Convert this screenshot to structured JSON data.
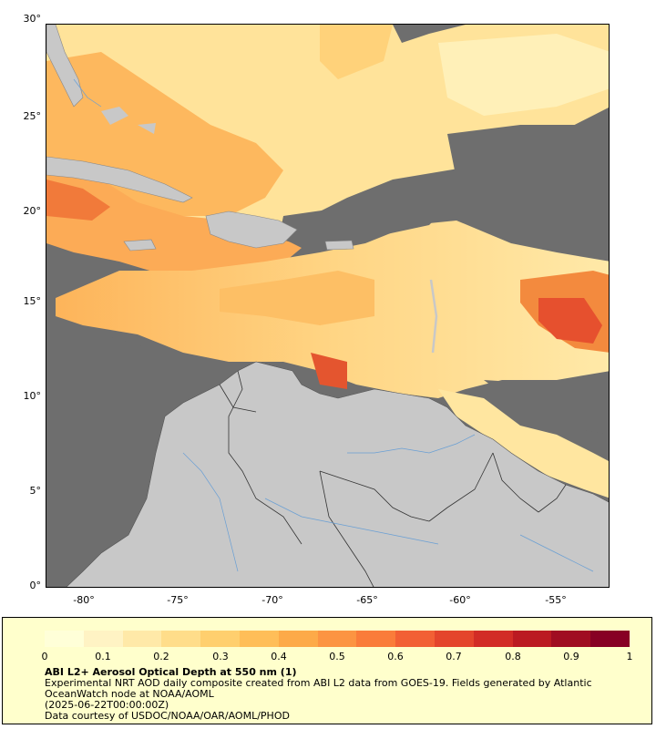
{
  "map": {
    "y_axis_labels": [
      "30°",
      "25°",
      "20°",
      "15°",
      "10°",
      "5°",
      "0°"
    ],
    "x_axis_labels": [
      "-80°",
      "-75°",
      "-70°",
      "-65°",
      "-60°",
      "-55°"
    ],
    "colors": {
      "ocean_no_data": "#6e6e6e",
      "land": "#c8c8c8",
      "border": "#333333",
      "river": "#6a9fd4"
    }
  },
  "legend": {
    "colorbar_labels": [
      "0",
      "0.1",
      "0.2",
      "0.3",
      "0.4",
      "0.5",
      "0.6",
      "0.7",
      "0.8",
      "0.9",
      "1"
    ],
    "colorbar_colors": [
      "#ffffd8",
      "#fff3c4",
      "#ffe9a8",
      "#ffdd8a",
      "#ffcf6e",
      "#ffbe58",
      "#fdaa48",
      "#fc9442",
      "#fa7c3a",
      "#f26034",
      "#e4452c",
      "#d22c26",
      "#bb1a22",
      "#a00d22",
      "#870024"
    ],
    "title": "ABI L2+ Aerosol Optical Depth at 550 nm (1)",
    "line1": "Experimental NRT AOD daily composite created from ABI L2 data from GOES-19. Fields generated by Atlantic",
    "line2": "OceanWatch node at NOAA/AOML",
    "line3": "(2025-06-22T00:00:00Z)",
    "line4": "Data courtesy of USDOC/NOAA/OAR/AOML/PHOD"
  }
}
